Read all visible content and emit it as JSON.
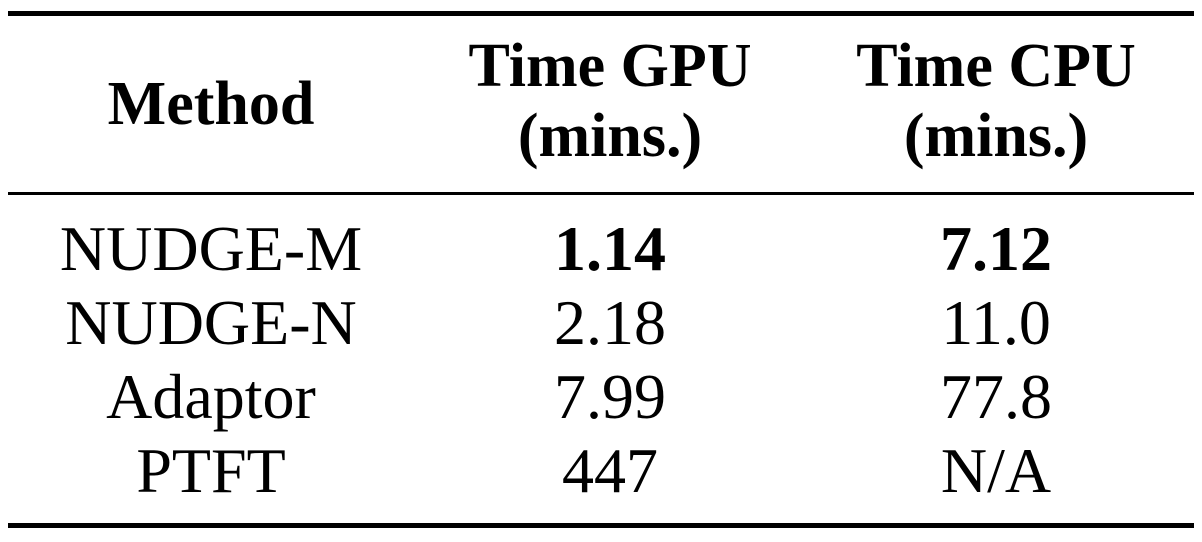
{
  "table": {
    "header": {
      "method": "Method",
      "gpu_line1": "Time GPU",
      "gpu_line2": "(mins.)",
      "cpu_line1": "Time CPU",
      "cpu_line2": "(mins.)"
    },
    "rows": [
      {
        "method": "NUDGE-M",
        "gpu": "1.14",
        "cpu": "7.12",
        "bold": true
      },
      {
        "method": "NUDGE-N",
        "gpu": "2.18",
        "cpu": "11.0",
        "bold": false
      },
      {
        "method": "Adaptor",
        "gpu": "7.99",
        "cpu": "77.8",
        "bold": false
      },
      {
        "method": "PTFT",
        "gpu": "447",
        "cpu": "N/A",
        "bold": false
      }
    ]
  }
}
